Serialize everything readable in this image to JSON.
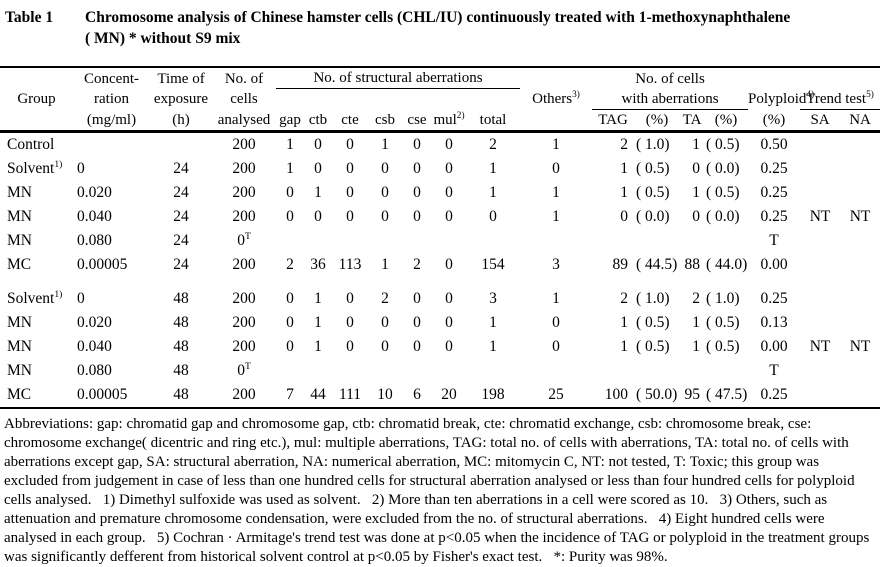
{
  "caption": {
    "label": "Table 1",
    "text": "Chromosome analysis of Chinese hamster cells (CHL/IU) continuously treated with 1-methoxynaphthalene\n( MN) * without S9 mix"
  },
  "header": {
    "row1": {
      "conc": "Concent-",
      "time": "Time of",
      "cells": "No. of",
      "structural": "No. of structural aberrations",
      "cells_ab": "No. of cells"
    },
    "row2": {
      "group": "Group",
      "conc": "ration",
      "time": "exposure",
      "cells": "cells",
      "others": "Others^3)",
      "cells_ab": "with aberrations",
      "poly": "Polyploid^4)",
      "trend": "Trend test^5)"
    },
    "row3": {
      "conc": "(mg/ml)",
      "time": "(h)",
      "cells": "analysed",
      "gap": "gap",
      "ctb": "ctb",
      "cte": "cte",
      "csb": "csb",
      "cse": "cse",
      "mul": "mul^2)",
      "total": "total",
      "tag": "TAG",
      "tag_pct": "(%)",
      "ta": "TA",
      "ta_pct": "(%)",
      "poly_pct": "(%)",
      "sa": "SA",
      "na": "NA"
    }
  },
  "table": {
    "rows": [
      [
        "Control",
        "",
        "",
        "200",
        "1",
        "0",
        "0",
        "1",
        "0",
        "0",
        "2",
        "1",
        "2",
        "( 1.0)",
        "1",
        "( 0.5)",
        "0.50",
        "",
        ""
      ],
      [
        "Solvent^1)",
        "0",
        "24",
        "200",
        "1",
        "0",
        "0",
        "0",
        "0",
        "0",
        "1",
        "0",
        "1",
        "( 0.5)",
        "0",
        "( 0.0)",
        "0.25",
        "",
        ""
      ],
      [
        "MN",
        "0.020",
        "24",
        "200",
        "0",
        "1",
        "0",
        "0",
        "0",
        "0",
        "1",
        "1",
        "1",
        "( 0.5)",
        "1",
        "( 0.5)",
        "0.25",
        "",
        ""
      ],
      [
        "MN",
        "0.040",
        "24",
        "200",
        "0",
        "0",
        "0",
        "0",
        "0",
        "0",
        "0",
        "1",
        "0",
        "( 0.0)",
        "0",
        "( 0.0)",
        "0.25",
        "NT",
        "NT"
      ],
      [
        "MN",
        "0.080",
        "24",
        "0^T",
        "",
        "",
        "",
        "",
        "",
        "",
        "",
        "",
        "",
        "",
        "",
        "",
        "T",
        "",
        ""
      ],
      [
        "MC",
        "0.00005",
        "24",
        "200",
        "2",
        "36",
        "113",
        "1",
        "2",
        "0",
        "154",
        "3",
        "89",
        "( 44.5)",
        "88",
        "( 44.0)",
        "0.00",
        "",
        ""
      ],
      [],
      [
        "Solvent^1)",
        "0",
        "48",
        "200",
        "0",
        "1",
        "0",
        "2",
        "0",
        "0",
        "3",
        "1",
        "2",
        "( 1.0)",
        "2",
        "( 1.0)",
        "0.25",
        "",
        ""
      ],
      [
        "MN",
        "0.020",
        "48",
        "200",
        "0",
        "1",
        "0",
        "0",
        "0",
        "0",
        "1",
        "0",
        "1",
        "( 0.5)",
        "1",
        "( 0.5)",
        "0.13",
        "",
        ""
      ],
      [
        "MN",
        "0.040",
        "48",
        "200",
        "0",
        "1",
        "0",
        "0",
        "0",
        "0",
        "1",
        "0",
        "1",
        "( 0.5)",
        "1",
        "( 0.5)",
        "0.00",
        "NT",
        "NT"
      ],
      [
        "MN",
        "0.080",
        "48",
        "0^T",
        "",
        "",
        "",
        "",
        "",
        "",
        "",
        "",
        "",
        "",
        "",
        "",
        "T",
        "",
        ""
      ],
      [
        "MC",
        "0.00005",
        "48",
        "200",
        "7",
        "44",
        "111",
        "10",
        "6",
        "20",
        "198",
        "25",
        "100",
        "( 50.0)",
        "95",
        "( 47.5)",
        "0.25",
        "",
        ""
      ]
    ]
  },
  "footnotes": "Abbreviations: gap: chromatid gap and chromosome gap, ctb: chromatid break, cte: chromatid exchange, csb: chromosome break, cse: chromosome exchange( dicentric and ring etc.), mul: multiple aberrations, TAG: total no. of cells with aberrations, TA: total no. of cells with aberrations except gap, SA: structural aberration, NA: numerical aberration, MC: mitomycin C, NT: not tested, T: Toxic; this group was excluded from judgement in case of less than one hundred cells for structural aberration analysed or less than four hundred cells for polyploid cells analysed.   1) Dimethyl sulfoxide was used as solvent.   2) More than ten aberrations in a cell were scored as 10.   3) Others, such as attenuation and premature chromosome condensation, were excluded from the no. of structural aberrations.   4) Eight hundred cells were analysed in each group.   5) Cochran · Armitage's trend test was done at p<0.05 when the incidence of TAG or polyploid in the treatment groups was significantly defferent from historical solvent control at p<0.05 by Fisher's exact test.   *: Purity was 98%."
}
